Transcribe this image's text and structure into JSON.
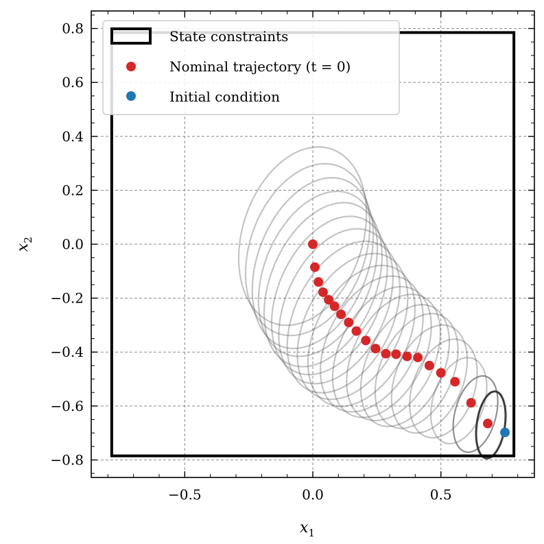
{
  "chart_data": {
    "type": "scatter",
    "title": "",
    "xlabel": "x",
    "xlabel_sub": "1",
    "ylabel": "x",
    "ylabel_sub": "2",
    "xlim": [
      -0.865,
      0.865
    ],
    "ylim": [
      -0.865,
      0.865
    ],
    "xticks": [
      -0.5,
      0.0,
      0.5
    ],
    "xtick_labels": [
      "−0.5",
      "0.0",
      "0.5"
    ],
    "yticks": [
      -0.8,
      -0.6,
      -0.4,
      -0.2,
      0.0,
      0.2,
      0.4,
      0.6,
      0.8
    ],
    "ytick_labels": [
      "−0.8",
      "−0.6",
      "−0.4",
      "−0.2",
      "0.0",
      "0.2",
      "0.4",
      "0.6",
      "0.8"
    ],
    "grid": true,
    "legend_position": "top-left",
    "legend": [
      {
        "label": "State constraints",
        "kind": "box"
      },
      {
        "label": "Nominal trajectory (t = 0)",
        "kind": "dot",
        "color": "#d62728"
      },
      {
        "label": "Initial condition",
        "kind": "dot",
        "color": "#1f77b4"
      }
    ],
    "constraint_box": {
      "x": [
        -0.785,
        0.785
      ],
      "y": [
        -0.785,
        0.785
      ]
    },
    "nominal_trajectory": {
      "color": "#d62728",
      "x": [
        0.0,
        0.008,
        0.022,
        0.04,
        0.062,
        0.085,
        0.11,
        0.14,
        0.17,
        0.207,
        0.245,
        0.285,
        0.325,
        0.368,
        0.41,
        0.455,
        0.5,
        0.555,
        0.618,
        0.683
      ],
      "y": [
        0.0,
        -0.085,
        -0.14,
        -0.178,
        -0.206,
        -0.23,
        -0.26,
        -0.29,
        -0.322,
        -0.357,
        -0.387,
        -0.406,
        -0.408,
        -0.416,
        -0.42,
        -0.45,
        -0.477,
        -0.51,
        -0.588,
        -0.665
      ]
    },
    "initial_condition": {
      "color": "#1f77b4",
      "x": 0.75,
      "y": -0.698
    },
    "uncertainty_ellipses": [
      {
        "cx": -0.04,
        "cy": 0.03,
        "rx": 0.235,
        "ry": 0.34,
        "angle": 18
      },
      {
        "cx": -0.02,
        "cy": -0.02,
        "rx": 0.225,
        "ry": 0.33,
        "angle": 20
      },
      {
        "cx": 0.0,
        "cy": -0.07,
        "rx": 0.215,
        "ry": 0.33,
        "angle": 21
      },
      {
        "cx": 0.02,
        "cy": -0.11,
        "rx": 0.21,
        "ry": 0.32,
        "angle": 22
      },
      {
        "cx": 0.04,
        "cy": -0.15,
        "rx": 0.205,
        "ry": 0.32,
        "angle": 23
      },
      {
        "cx": 0.065,
        "cy": -0.19,
        "rx": 0.2,
        "ry": 0.31,
        "angle": 24
      },
      {
        "cx": 0.09,
        "cy": -0.23,
        "rx": 0.195,
        "ry": 0.305,
        "angle": 25
      },
      {
        "cx": 0.12,
        "cy": -0.27,
        "rx": 0.19,
        "ry": 0.3,
        "angle": 26
      },
      {
        "cx": 0.155,
        "cy": -0.305,
        "rx": 0.185,
        "ry": 0.29,
        "angle": 27
      },
      {
        "cx": 0.19,
        "cy": -0.34,
        "rx": 0.18,
        "ry": 0.28,
        "angle": 27
      },
      {
        "cx": 0.23,
        "cy": -0.37,
        "rx": 0.172,
        "ry": 0.27,
        "angle": 27
      },
      {
        "cx": 0.27,
        "cy": -0.4,
        "rx": 0.165,
        "ry": 0.26,
        "angle": 27
      },
      {
        "cx": 0.315,
        "cy": -0.42,
        "rx": 0.158,
        "ry": 0.25,
        "angle": 26
      },
      {
        "cx": 0.36,
        "cy": -0.45,
        "rx": 0.15,
        "ry": 0.24,
        "angle": 25
      },
      {
        "cx": 0.405,
        "cy": -0.47,
        "rx": 0.142,
        "ry": 0.225,
        "angle": 24
      },
      {
        "cx": 0.455,
        "cy": -0.5,
        "rx": 0.132,
        "ry": 0.21,
        "angle": 22
      },
      {
        "cx": 0.51,
        "cy": -0.535,
        "rx": 0.12,
        "ry": 0.19,
        "angle": 20
      },
      {
        "cx": 0.57,
        "cy": -0.58,
        "rx": 0.1,
        "ry": 0.165,
        "angle": 18
      },
      {
        "cx": 0.635,
        "cy": -0.63,
        "rx": 0.08,
        "ry": 0.145,
        "angle": 15
      },
      {
        "cx": 0.695,
        "cy": -0.67,
        "rx": 0.055,
        "ry": 0.125,
        "angle": 8
      }
    ]
  }
}
